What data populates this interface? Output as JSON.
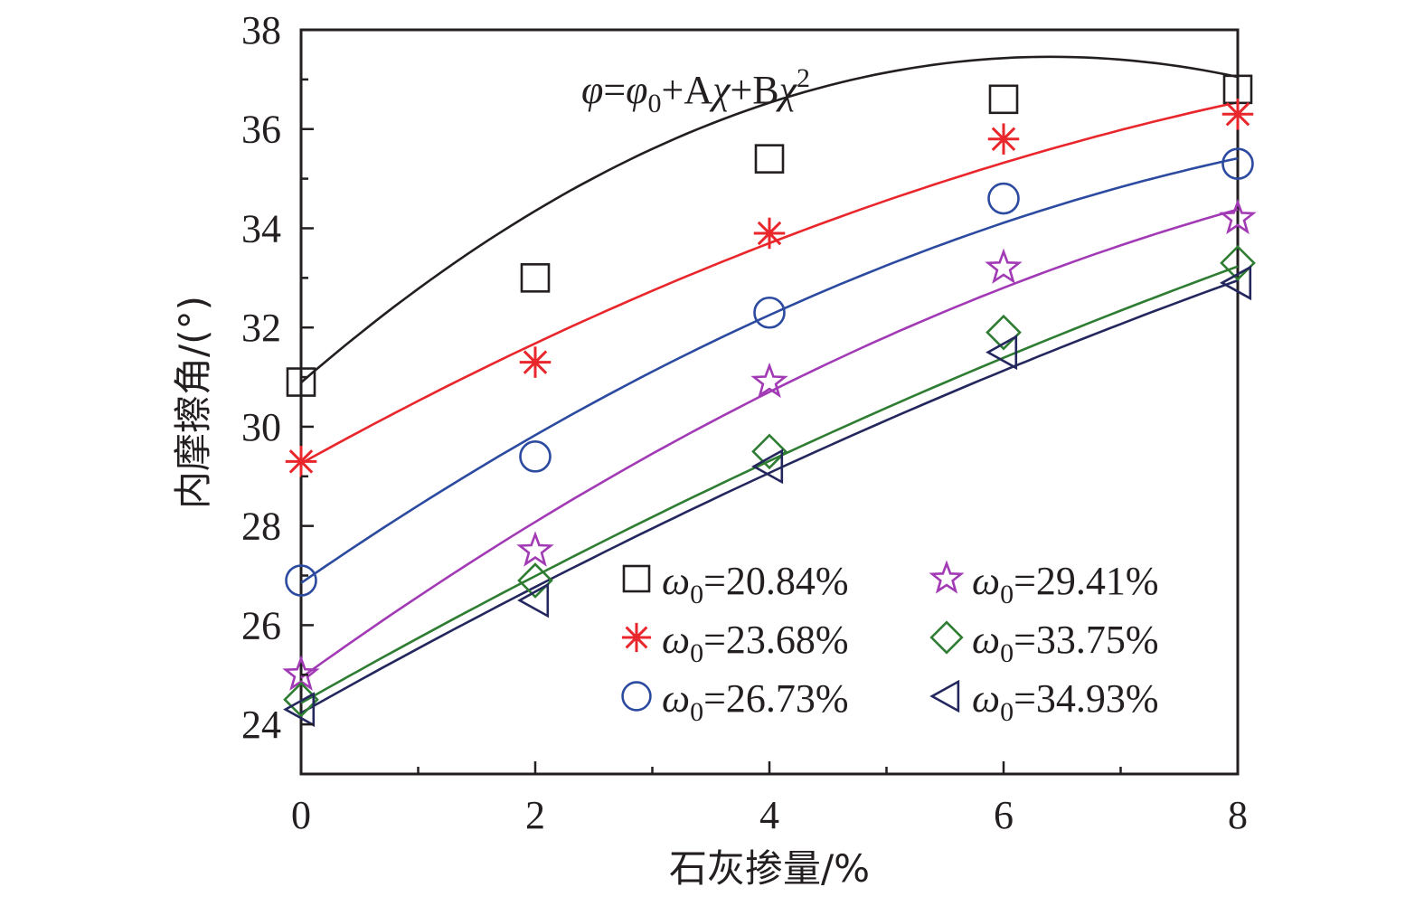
{
  "chart_data": {
    "type": "scatter",
    "xlabel": "石灰掺量/%",
    "ylabel": "内摩擦角/(°)",
    "xlim": [
      0,
      8
    ],
    "ylim": [
      23,
      38
    ],
    "xticks": [
      0,
      2,
      4,
      6,
      8
    ],
    "yticks": [
      24,
      26,
      28,
      30,
      32,
      34,
      36,
      38
    ],
    "annotation": {
      "sym": "φ",
      "eq": "=",
      "sym0": "φ",
      "sub0": "0",
      "mid1": "+A",
      "chi1": "χ",
      "mid2": "+B",
      "chi2": "χ",
      "sup2": "2"
    },
    "legend_position": "lower-right",
    "series": [
      {
        "name_sym": "ω",
        "name_sub": "0",
        "name_val": "=20.84%",
        "marker": "square",
        "color": "#231f20",
        "x": [
          0,
          2,
          4,
          6,
          8
        ],
        "y": [
          30.9,
          33.0,
          35.4,
          36.6,
          36.8
        ],
        "fit": [
          30.89,
          2.05,
          -0.16
        ]
      },
      {
        "name_sym": "ω",
        "name_sub": "0",
        "name_val": "=23.68%",
        "marker": "asterisk",
        "color": "#e8262b",
        "x": [
          0,
          2,
          4,
          6,
          8
        ],
        "y": [
          29.3,
          31.3,
          33.9,
          35.8,
          36.3
        ],
        "fit": [
          29.26,
          1.31,
          -0.05
        ]
      },
      {
        "name_sym": "ω",
        "name_sub": "0",
        "name_val": "=26.73%",
        "marker": "circle",
        "color": "#2b4aa0",
        "x": [
          0,
          2,
          4,
          6,
          8
        ],
        "y": [
          26.9,
          29.4,
          32.3,
          34.6,
          35.3
        ],
        "fit": [
          26.85,
          1.63,
          -0.07
        ]
      },
      {
        "name_sym": "ω",
        "name_sub": "0",
        "name_val": "=29.41%",
        "marker": "star",
        "color": "#a23ab5",
        "x": [
          0,
          2,
          4,
          6,
          8
        ],
        "y": [
          25.0,
          27.5,
          30.9,
          33.2,
          34.2
        ],
        "fit": [
          24.94,
          1.7,
          -0.065
        ]
      },
      {
        "name_sym": "ω",
        "name_sub": "0",
        "name_val": "=33.75%",
        "marker": "diamond",
        "color": "#2e7d32",
        "x": [
          0,
          2,
          4,
          6,
          8
        ],
        "y": [
          24.5,
          26.9,
          29.5,
          31.9,
          33.3
        ],
        "fit": [
          24.43,
          1.34,
          -0.03
        ]
      },
      {
        "name_sym": "ω",
        "name_sub": "0",
        "name_val": "=34.93%",
        "marker": "triangle-left",
        "color": "#24275e",
        "x": [
          0,
          2,
          4,
          6,
          8
        ],
        "y": [
          24.3,
          26.5,
          29.2,
          31.5,
          32.9
        ],
        "fit": [
          24.23,
          1.33,
          -0.03
        ]
      }
    ]
  }
}
